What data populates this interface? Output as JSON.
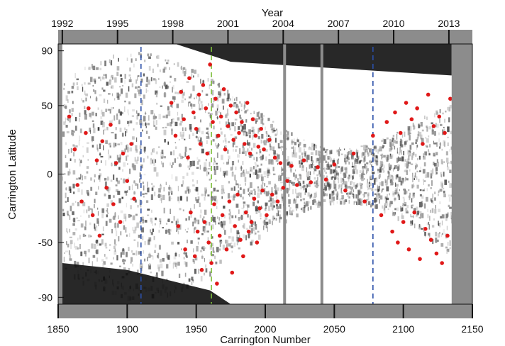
{
  "chart_data": {
    "type": "scatter",
    "title": "",
    "top_axis": {
      "label": "Year",
      "ticks": [
        "1992",
        "1995",
        "1998",
        "2001",
        "2004",
        "2007",
        "2010",
        "2013"
      ],
      "tick_positions": [
        1853,
        1893,
        1933,
        1973,
        2013,
        2053,
        2093,
        2133
      ]
    },
    "xlabel": "Carrington Number",
    "ylabel": "Carrington Latitude",
    "xlim": [
      1850,
      2150
    ],
    "ylim": [
      -95,
      95
    ],
    "xticks": [
      "1850",
      "1900",
      "1950",
      "2000",
      "2050",
      "2100",
      "2150"
    ],
    "xtick_values": [
      1850,
      1900,
      1950,
      2000,
      2050,
      2100,
      2150
    ],
    "yticks": [
      "90",
      "50",
      "0",
      "-50",
      "-90"
    ],
    "ytick_values": [
      90,
      50,
      0,
      -50,
      -90
    ],
    "data_range": [
      1853,
      2135
    ],
    "data_gaps": [
      2014,
      2041
    ],
    "grid": false,
    "reference_lines": [
      {
        "x": 1910,
        "style": "dashed",
        "color": "#2b4fa8"
      },
      {
        "x": 1961,
        "style": "dashed",
        "color": "#7dbf3a"
      },
      {
        "x": 2078,
        "style": "dashed",
        "color": "#2b4fa8"
      }
    ],
    "series": [
      {
        "marker_color": "#e01818",
        "points": [
          [
            1858,
            42
          ],
          [
            1862,
            18
          ],
          [
            1864,
            -8
          ],
          [
            1867,
            -20
          ],
          [
            1870,
            30
          ],
          [
            1872,
            48
          ],
          [
            1875,
            -30
          ],
          [
            1878,
            10
          ],
          [
            1880,
            -45
          ],
          [
            1882,
            24
          ],
          [
            1885,
            -10
          ],
          [
            1888,
            36
          ],
          [
            1890,
            -22
          ],
          [
            1892,
            8
          ],
          [
            1895,
            -35
          ],
          [
            1897,
            15
          ],
          [
            1900,
            -5
          ],
          [
            1903,
            22
          ],
          [
            1905,
            -18
          ],
          [
            1932,
            52
          ],
          [
            1935,
            28
          ],
          [
            1937,
            -38
          ],
          [
            1939,
            60
          ],
          [
            1941,
            40
          ],
          [
            1942,
            -55
          ],
          [
            1944,
            12
          ],
          [
            1945,
            70
          ],
          [
            1946,
            -28
          ],
          [
            1948,
            45
          ],
          [
            1949,
            -60
          ],
          [
            1950,
            33
          ],
          [
            1951,
            -42
          ],
          [
            1952,
            58
          ],
          [
            1953,
            22
          ],
          [
            1954,
            -70
          ],
          [
            1955,
            65
          ],
          [
            1956,
            -35
          ],
          [
            1957,
            48
          ],
          [
            1958,
            15
          ],
          [
            1959,
            -50
          ],
          [
            1960,
            80
          ],
          [
            1961,
            -65
          ],
          [
            1962,
            38
          ],
          [
            1963,
            -22
          ],
          [
            1964,
            55
          ],
          [
            1965,
            -80
          ],
          [
            1966,
            28
          ],
          [
            1967,
            -45
          ],
          [
            1968,
            42
          ],
          [
            1969,
            -30
          ],
          [
            1970,
            62
          ],
          [
            1971,
            18
          ],
          [
            1972,
            -55
          ],
          [
            1973,
            35
          ],
          [
            1974,
            -20
          ],
          [
            1975,
            50
          ],
          [
            1976,
            -72
          ],
          [
            1977,
            25
          ],
          [
            1978,
            -38
          ],
          [
            1979,
            45
          ],
          [
            1980,
            -15
          ],
          [
            1981,
            30
          ],
          [
            1982,
            -48
          ],
          [
            1983,
            38
          ],
          [
            1984,
            -60
          ],
          [
            1985,
            22
          ],
          [
            1986,
            -28
          ],
          [
            1987,
            52
          ],
          [
            1988,
            -42
          ],
          [
            1989,
            15
          ],
          [
            1990,
            -35
          ],
          [
            1991,
            40
          ],
          [
            1992,
            -18
          ],
          [
            1993,
            28
          ],
          [
            1994,
            -50
          ],
          [
            1995,
            20
          ],
          [
            1996,
            -25
          ],
          [
            1997,
            33
          ],
          [
            1998,
            -12
          ],
          [
            1999,
            18
          ],
          [
            2001,
            -30
          ],
          [
            2003,
            25
          ],
          [
            2005,
            -15
          ],
          [
            2007,
            12
          ],
          [
            2009,
            -20
          ],
          [
            2011,
            8
          ],
          [
            2013,
            -10
          ],
          [
            2016,
            -5
          ],
          [
            2019,
            6
          ],
          [
            2023,
            -8
          ],
          [
            2028,
            10
          ],
          [
            2033,
            -6
          ],
          [
            2038,
            5
          ],
          [
            2044,
            -4
          ],
          [
            2050,
            7
          ],
          [
            2058,
            -12
          ],
          [
            2064,
            15
          ],
          [
            2072,
            -20
          ],
          [
            2078,
            28
          ],
          [
            2084,
            -30
          ],
          [
            2088,
            38
          ],
          [
            2092,
            -42
          ],
          [
            2094,
            45
          ],
          [
            2096,
            -50
          ],
          [
            2098,
            30
          ],
          [
            2100,
            -35
          ],
          [
            2102,
            52
          ],
          [
            2104,
            -55
          ],
          [
            2106,
            40
          ],
          [
            2108,
            -28
          ],
          [
            2110,
            48
          ],
          [
            2112,
            -62
          ],
          [
            2114,
            22
          ],
          [
            2116,
            -40
          ],
          [
            2118,
            58
          ],
          [
            2120,
            -48
          ],
          [
            2122,
            35
          ],
          [
            2124,
            -58
          ],
          [
            2126,
            42
          ],
          [
            2128,
            -65
          ],
          [
            2130,
            30
          ],
          [
            2132,
            -45
          ],
          [
            2134,
            55
          ]
        ]
      }
    ]
  }
}
